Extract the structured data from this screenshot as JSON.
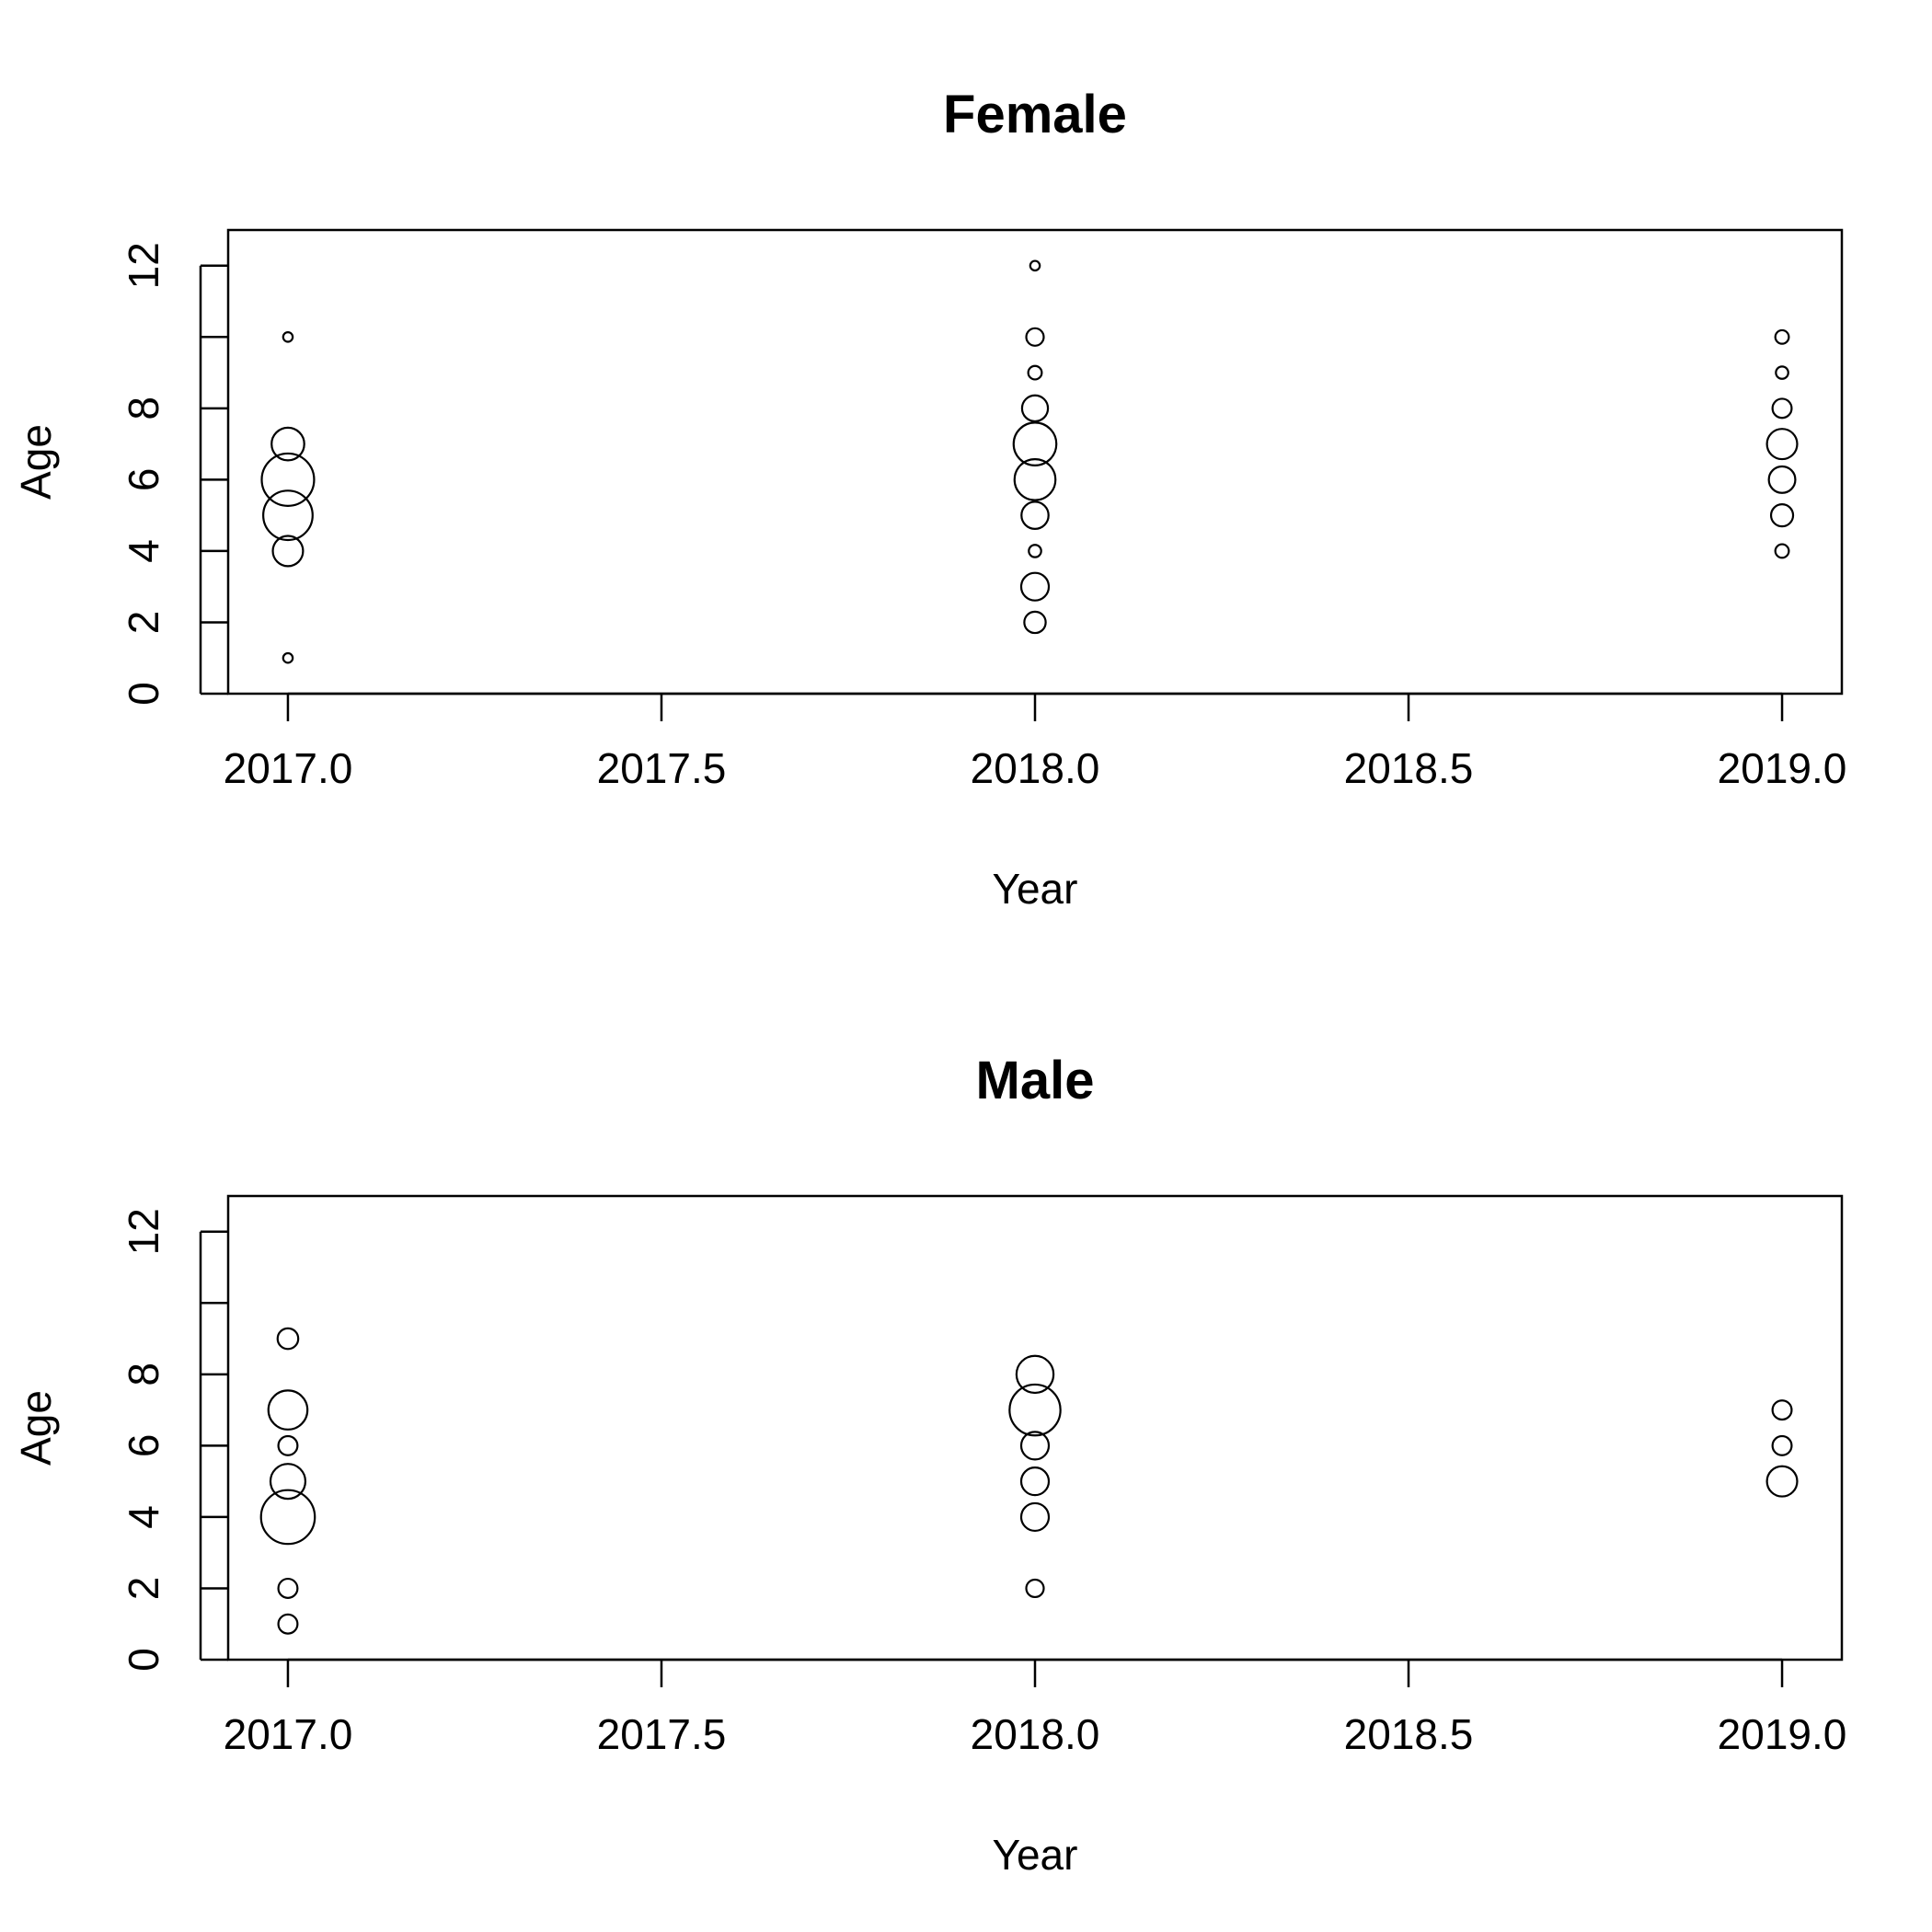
{
  "chart_data": [
    {
      "type": "scatter",
      "title": "Female",
      "xlabel": "Year",
      "ylabel": "Age",
      "xlim": [
        2016.92,
        2019.08
      ],
      "ylim": [
        0,
        13
      ],
      "x_ticks": [
        "2017.0",
        "2017.5",
        "2018.0",
        "2018.5",
        "2019.0"
      ],
      "y_ticks": [
        "0",
        "2",
        "4",
        "6",
        "8",
        "",
        "12"
      ],
      "series": [
        {
          "points": [
            {
              "x": 2017,
              "y": 10,
              "size": 0.03
            },
            {
              "x": 2017,
              "y": 7,
              "size": 0.35
            },
            {
              "x": 2017,
              "y": 6,
              "size": 0.9
            },
            {
              "x": 2017,
              "y": 5,
              "size": 0.8
            },
            {
              "x": 2017,
              "y": 4,
              "size": 0.3
            },
            {
              "x": 2017,
              "y": 1,
              "size": 0.03
            },
            {
              "x": 2018,
              "y": 12,
              "size": 0.03
            },
            {
              "x": 2018,
              "y": 10,
              "size": 0.1
            },
            {
              "x": 2018,
              "y": 9,
              "size": 0.06
            },
            {
              "x": 2018,
              "y": 8,
              "size": 0.22
            },
            {
              "x": 2018,
              "y": 7,
              "size": 0.6
            },
            {
              "x": 2018,
              "y": 6,
              "size": 0.55
            },
            {
              "x": 2018,
              "y": 5,
              "size": 0.24
            },
            {
              "x": 2018,
              "y": 4,
              "size": 0.05
            },
            {
              "x": 2018,
              "y": 3,
              "size": 0.25
            },
            {
              "x": 2018,
              "y": 2,
              "size": 0.15
            },
            {
              "x": 2019,
              "y": 10,
              "size": 0.06
            },
            {
              "x": 2019,
              "y": 9,
              "size": 0.05
            },
            {
              "x": 2019,
              "y": 8,
              "size": 0.12
            },
            {
              "x": 2019,
              "y": 7,
              "size": 0.3
            },
            {
              "x": 2019,
              "y": 6,
              "size": 0.23
            },
            {
              "x": 2019,
              "y": 5,
              "size": 0.16
            },
            {
              "x": 2019,
              "y": 4,
              "size": 0.06
            }
          ]
        }
      ],
      "grid": false,
      "legend": "none"
    },
    {
      "type": "scatter",
      "title": "Male",
      "xlabel": "Year",
      "ylabel": "Age",
      "xlim": [
        2016.92,
        2019.08
      ],
      "ylim": [
        0,
        13
      ],
      "x_ticks": [
        "2017.0",
        "2017.5",
        "2018.0",
        "2018.5",
        "2019.0"
      ],
      "y_ticks": [
        "0",
        "2",
        "4",
        "6",
        "8",
        "",
        "12"
      ],
      "series": [
        {
          "points": [
            {
              "x": 2017,
              "y": 9,
              "size": 0.14
            },
            {
              "x": 2017,
              "y": 7,
              "size": 0.5
            },
            {
              "x": 2017,
              "y": 6,
              "size": 0.12
            },
            {
              "x": 2017,
              "y": 5,
              "size": 0.4
            },
            {
              "x": 2017,
              "y": 4,
              "size": 0.95
            },
            {
              "x": 2017,
              "y": 2,
              "size": 0.12
            },
            {
              "x": 2017,
              "y": 1,
              "size": 0.12
            },
            {
              "x": 2018,
              "y": 8,
              "size": 0.45
            },
            {
              "x": 2018,
              "y": 7,
              "size": 0.85
            },
            {
              "x": 2018,
              "y": 6,
              "size": 0.25
            },
            {
              "x": 2018,
              "y": 5,
              "size": 0.25
            },
            {
              "x": 2018,
              "y": 4,
              "size": 0.25
            },
            {
              "x": 2018,
              "y": 2,
              "size": 0.1
            },
            {
              "x": 2019,
              "y": 7,
              "size": 0.12
            },
            {
              "x": 2019,
              "y": 6,
              "size": 0.12
            },
            {
              "x": 2019,
              "y": 5,
              "size": 0.3
            }
          ]
        }
      ],
      "grid": false,
      "legend": "none"
    }
  ]
}
